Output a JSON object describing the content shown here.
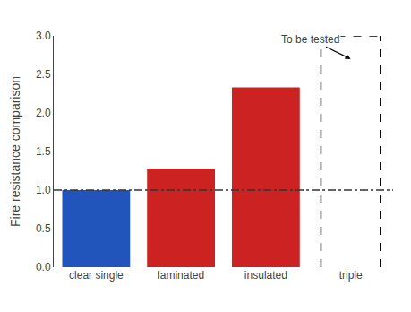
{
  "chart_data": {
    "type": "bar",
    "categories": [
      "clear single",
      "laminated",
      "insulated",
      "triple"
    ],
    "values": [
      1.0,
      1.28,
      2.33,
      null
    ],
    "colors": [
      "#2255bb",
      "#cc2222",
      "#cc2222"
    ],
    "ylabel": "Fire resistance comparison",
    "ylim": [
      0.0,
      3.0
    ],
    "yticks": [
      {
        "value": 0.0,
        "label": "0.0"
      },
      {
        "value": 0.5,
        "label": "0.5"
      },
      {
        "value": 1.0,
        "label": "1.0"
      },
      {
        "value": 1.5,
        "label": "1.5"
      },
      {
        "value": 2.0,
        "label": "2.0"
      },
      {
        "value": 2.5,
        "label": "2.5"
      },
      {
        "value": 3.0,
        "label": "3.0"
      }
    ],
    "grid": false,
    "reference_line": {
      "y": 1.0,
      "color": "#333333",
      "line_style": "dashdot"
    },
    "box": {
      "category": "triple",
      "y0": 0.0,
      "y1": 3.0,
      "color": "black",
      "line_style": "dash"
    },
    "annotations": [
      {
        "text": "To be tested",
        "category": "triple"
      }
    ]
  }
}
